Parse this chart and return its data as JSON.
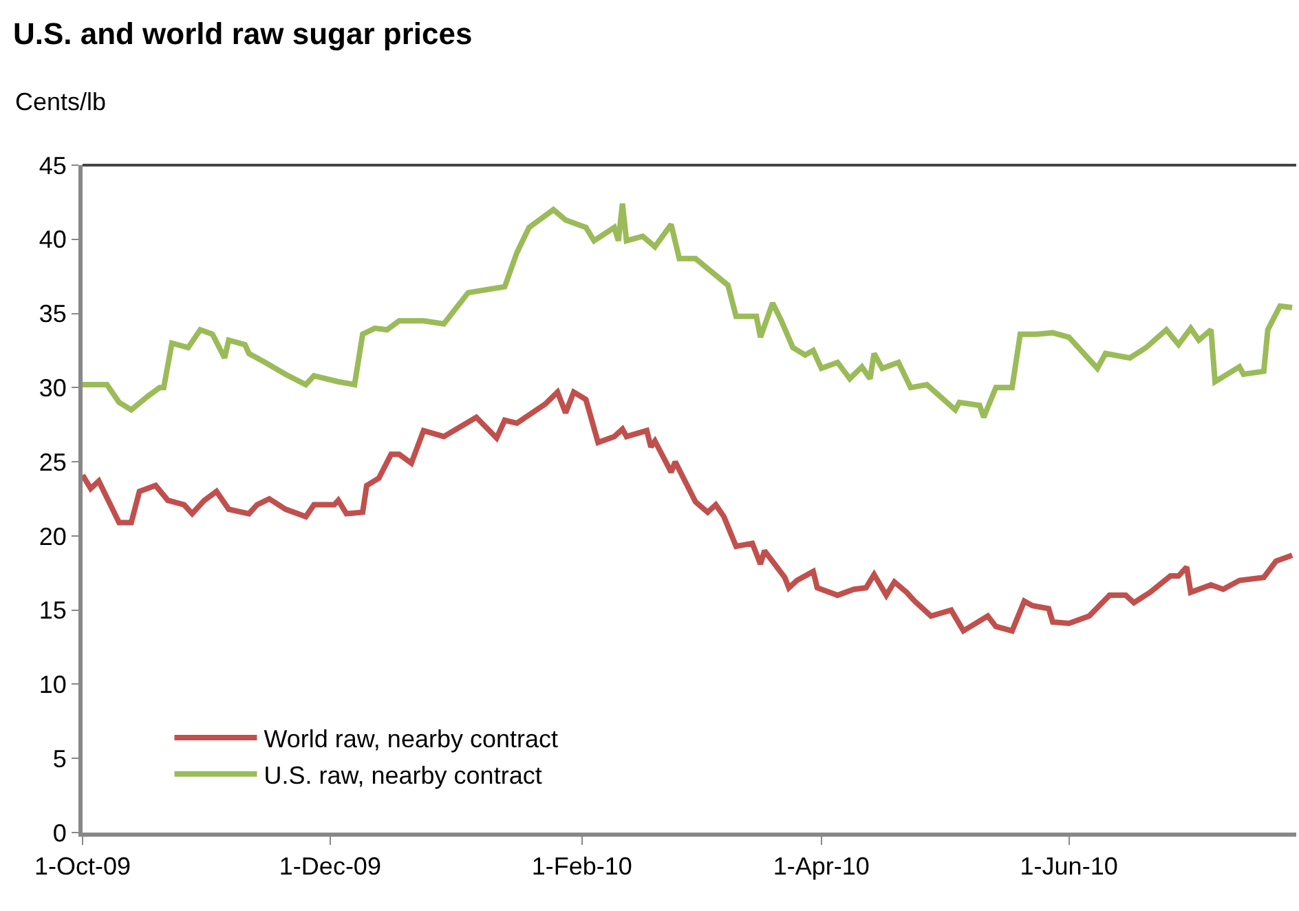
{
  "chart_data": {
    "type": "line",
    "title": "U.S. and world raw sugar prices",
    "ylabel": "Cents/lb",
    "xlim": [
      "2009-10-01",
      "2010-07-27"
    ],
    "xticks": [
      {
        "value": "2009-10-01",
        "label": "1-Oct-09"
      },
      {
        "value": "2009-12-01",
        "label": "1-Dec-09"
      },
      {
        "value": "2010-02-01",
        "label": "1-Feb-10"
      },
      {
        "value": "2010-04-01",
        "label": "1-Apr-10"
      },
      {
        "value": "2010-06-01",
        "label": "1-Jun-10"
      }
    ],
    "ylim": [
      0,
      45
    ],
    "yticks": [
      0,
      5,
      10,
      15,
      20,
      25,
      30,
      35,
      40,
      45
    ],
    "grid": false,
    "legend": "bottom left",
    "marker": "none",
    "line_style": "solid",
    "series": [
      {
        "name": "World raw, nearby contract",
        "color": "#c0504d",
        "x": [
          "2009-10-01",
          "2009-10-03",
          "2009-10-05",
          "2009-10-10",
          "2009-10-13",
          "2009-10-15",
          "2009-10-19",
          "2009-10-22",
          "2009-10-26",
          "2009-10-28",
          "2009-10-31",
          "2009-11-03",
          "2009-11-06",
          "2009-11-11",
          "2009-11-13",
          "2009-11-16",
          "2009-11-20",
          "2009-11-25",
          "2009-11-27",
          "2009-12-02",
          "2009-12-03",
          "2009-12-05",
          "2009-12-09",
          "2009-12-10",
          "2009-12-13",
          "2009-12-16",
          "2009-12-18",
          "2009-12-21",
          "2009-12-24",
          "2009-12-29",
          "2010-01-06",
          "2010-01-11",
          "2010-01-13",
          "2010-01-16",
          "2010-01-23",
          "2010-01-26",
          "2010-01-28",
          "2010-01-30",
          "2010-02-02",
          "2010-02-05",
          "2010-02-09",
          "2010-02-11",
          "2010-02-12",
          "2010-02-17",
          "2010-02-18",
          "2010-02-19",
          "2010-02-23",
          "2010-02-24",
          "2010-03-01",
          "2010-03-04",
          "2010-03-06",
          "2010-03-08",
          "2010-03-11",
          "2010-03-15",
          "2010-03-17",
          "2010-03-18",
          "2010-03-23",
          "2010-03-24",
          "2010-03-26",
          "2010-03-30",
          "2010-03-31",
          "2010-04-05",
          "2010-04-09",
          "2010-04-12",
          "2010-04-14",
          "2010-04-17",
          "2010-04-19",
          "2010-04-22",
          "2010-04-24",
          "2010-04-28",
          "2010-05-03",
          "2010-05-06",
          "2010-05-12",
          "2010-05-14",
          "2010-05-18",
          "2010-05-21",
          "2010-05-23",
          "2010-05-27",
          "2010-05-28",
          "2010-06-01",
          "2010-06-06",
          "2010-06-11",
          "2010-06-15",
          "2010-06-17",
          "2010-06-21",
          "2010-06-26",
          "2010-06-28",
          "2010-06-30",
          "2010-07-01",
          "2010-07-06",
          "2010-07-09",
          "2010-07-13",
          "2010-07-19",
          "2010-07-22",
          "2010-07-26"
        ],
        "values": [
          24.1,
          23.2,
          23.7,
          20.9,
          20.9,
          23.0,
          23.4,
          22.4,
          22.1,
          21.5,
          22.4,
          23.0,
          21.8,
          21.5,
          22.1,
          22.5,
          21.8,
          21.3,
          22.1,
          22.1,
          22.4,
          21.5,
          21.6,
          23.4,
          23.9,
          25.5,
          25.5,
          24.9,
          27.1,
          26.7,
          28.0,
          26.6,
          27.8,
          27.6,
          28.9,
          29.7,
          28.3,
          29.7,
          29.2,
          26.3,
          26.7,
          27.2,
          26.7,
          27.1,
          26.0,
          26.4,
          24.3,
          25.0,
          22.3,
          21.6,
          22.1,
          21.3,
          19.3,
          19.5,
          18.1,
          19.0,
          17.2,
          16.5,
          17.0,
          17.6,
          16.5,
          16.0,
          16.4,
          16.5,
          17.4,
          16.0,
          16.9,
          16.2,
          15.6,
          14.6,
          15.0,
          13.6,
          14.6,
          13.9,
          13.6,
          15.6,
          15.3,
          15.1,
          14.2,
          14.1,
          14.6,
          16.0,
          16.0,
          15.5,
          16.2,
          17.3,
          17.3,
          17.9,
          16.2,
          16.7,
          16.4,
          17.0,
          17.2,
          18.3,
          18.7
        ]
      },
      {
        "name": "U.S. raw, nearby contract",
        "color": "#9bbb59",
        "x": [
          "2009-10-01",
          "2009-10-07",
          "2009-10-10",
          "2009-10-13",
          "2009-10-17",
          "2009-10-20",
          "2009-10-21",
          "2009-10-23",
          "2009-10-27",
          "2009-10-30",
          "2009-11-02",
          "2009-11-05",
          "2009-11-06",
          "2009-11-10",
          "2009-11-11",
          "2009-11-15",
          "2009-11-20",
          "2009-11-25",
          "2009-11-27",
          "2009-12-03",
          "2009-12-07",
          "2009-12-09",
          "2009-12-12",
          "2009-12-15",
          "2009-12-18",
          "2009-12-24",
          "2009-12-29",
          "2009-12-31",
          "2010-01-04",
          "2010-01-13",
          "2010-01-16",
          "2010-01-19",
          "2010-01-25",
          "2010-01-28",
          "2010-02-02",
          "2010-02-04",
          "2010-02-09",
          "2010-02-10",
          "2010-02-11",
          "2010-02-12",
          "2010-02-16",
          "2010-02-19",
          "2010-02-23",
          "2010-02-25",
          "2010-03-01",
          "2010-03-09",
          "2010-03-11",
          "2010-03-16",
          "2010-03-17",
          "2010-03-20",
          "2010-03-22",
          "2010-03-25",
          "2010-03-28",
          "2010-03-30",
          "2010-04-01",
          "2010-04-05",
          "2010-04-08",
          "2010-04-11",
          "2010-04-13",
          "2010-04-14",
          "2010-04-16",
          "2010-04-20",
          "2010-04-23",
          "2010-04-27",
          "2010-05-04",
          "2010-05-05",
          "2010-05-10",
          "2010-05-11",
          "2010-05-14",
          "2010-05-18",
          "2010-05-20",
          "2010-05-24",
          "2010-05-28",
          "2010-06-01",
          "2010-06-08",
          "2010-06-10",
          "2010-06-16",
          "2010-06-20",
          "2010-06-25",
          "2010-06-28",
          "2010-07-01",
          "2010-07-03",
          "2010-07-06",
          "2010-07-07",
          "2010-07-13",
          "2010-07-14",
          "2010-07-19",
          "2010-07-20",
          "2010-07-23",
          "2010-07-26"
        ],
        "values": [
          30.2,
          30.2,
          29.0,
          28.5,
          29.4,
          30.0,
          30.0,
          33.0,
          32.7,
          33.9,
          33.6,
          32.0,
          33.2,
          32.9,
          32.3,
          31.7,
          30.9,
          30.2,
          30.8,
          30.4,
          30.2,
          33.6,
          34.0,
          33.9,
          34.5,
          34.5,
          34.3,
          35.0,
          36.4,
          36.8,
          39.1,
          40.8,
          42.0,
          41.3,
          40.8,
          39.9,
          40.8,
          39.9,
          42.4,
          39.9,
          40.2,
          39.5,
          41.0,
          38.7,
          38.7,
          36.9,
          34.8,
          34.8,
          33.4,
          35.7,
          34.6,
          32.7,
          32.2,
          32.5,
          31.3,
          31.7,
          30.6,
          31.4,
          30.6,
          32.3,
          31.3,
          31.7,
          30.0,
          30.2,
          28.5,
          29.0,
          28.8,
          28.0,
          30.0,
          30.0,
          33.6,
          33.6,
          33.7,
          33.4,
          31.3,
          32.3,
          32.0,
          32.7,
          33.9,
          32.9,
          34.0,
          33.2,
          33.9,
          30.4,
          31.4,
          30.9,
          31.1,
          33.9,
          35.5,
          35.4
        ]
      }
    ]
  }
}
